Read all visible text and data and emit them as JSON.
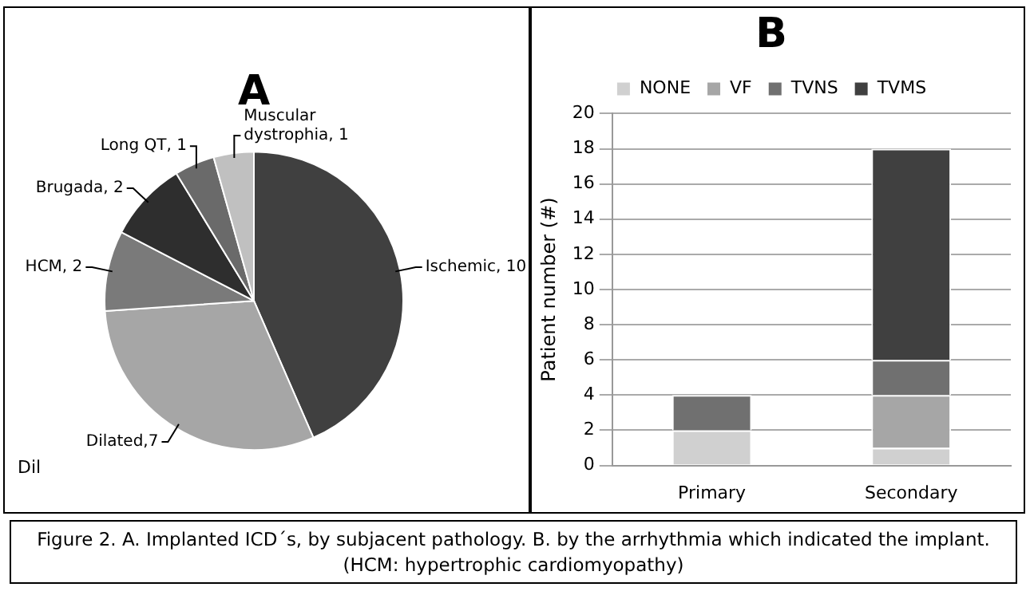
{
  "chart_data": [
    {
      "type": "pie",
      "title": "A",
      "categories": [
        "Ischemic, 10",
        "Dilated,7",
        "HCM, 2",
        "Brugada, 2",
        "Long QT, 1",
        "Muscular dystrophia, 1"
      ],
      "values": [
        10,
        7,
        2,
        2,
        1,
        1
      ],
      "colors": [
        "#404040",
        "#a6a6a6",
        "#7a7a7a",
        "#2e2e2e",
        "#6a6a6a",
        "#c0c0c0"
      ],
      "annotations": [
        "Dil"
      ],
      "legend": false
    },
    {
      "type": "bar",
      "title": "B",
      "categories": [
        "Primary",
        "Secondary"
      ],
      "stacked": true,
      "ylabel": "Patient number (#)",
      "ylim": [
        0,
        20
      ],
      "yticks": [
        0,
        2,
        4,
        6,
        8,
        10,
        12,
        14,
        16,
        18,
        20
      ],
      "grid": "y",
      "legend": "top",
      "series": [
        {
          "name": "NONE",
          "color": "#d0d0d0",
          "values": [
            2,
            1
          ]
        },
        {
          "name": "VF",
          "color": "#a6a6a6",
          "values": [
            0,
            3
          ]
        },
        {
          "name": "TVNS",
          "color": "#707070",
          "values": [
            2,
            2
          ]
        },
        {
          "name": "TVMS",
          "color": "#404040",
          "values": [
            0,
            12
          ]
        }
      ],
      "annotations": [
        "Figure 2. A. Implanted ICD´s, by subjacent pathology. B. by the arrhythmia which indicated the implant. (HCM: hypertrophic cardiomyopathy)"
      ]
    }
  ]
}
